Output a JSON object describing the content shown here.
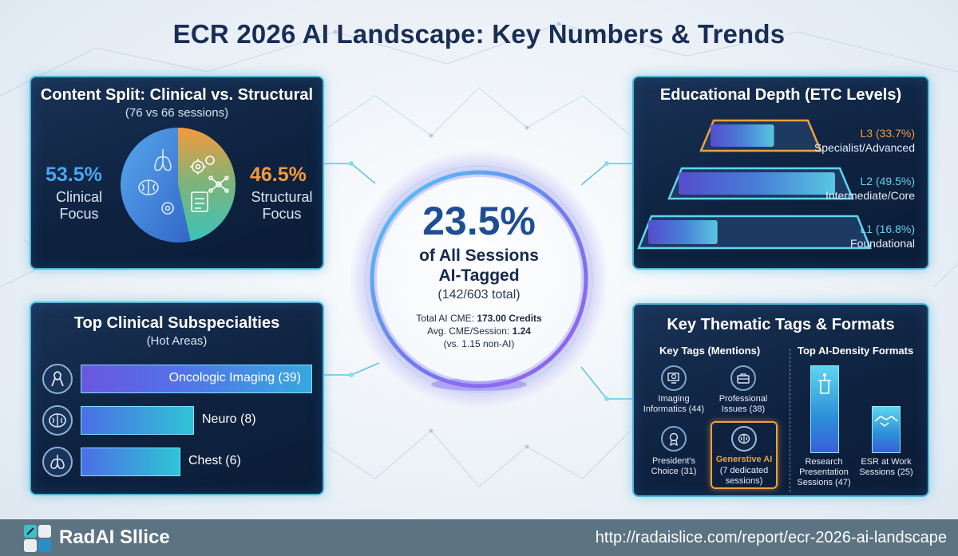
{
  "title": "ECR 2026 AI Landscape: Key Numbers & Trends",
  "content_split": {
    "heading": "Content Split: Clinical vs. Structural",
    "subheading": "(76 vs 66 sessions)",
    "clinical_pct": "53.5%",
    "clinical_label_1": "Clinical",
    "clinical_label_2": "Focus",
    "structural_pct": "46.5%",
    "structural_label_1": "Structural",
    "structural_label_2": "Focus",
    "clinical_fraction": 0.535,
    "colors": {
      "clinical": "#3b8fdc",
      "structural": "#f08a3a",
      "teal": "#3fc0b6"
    }
  },
  "center": {
    "big": "23.5%",
    "line1": "of All Sessions",
    "line2": "AI-Tagged",
    "line3": "(142/603 total)",
    "cme_label": "Total AI CME: ",
    "cme_value": "173.00 Credits",
    "avg_label": "Avg. CME/Session: ",
    "avg_value": "1.24",
    "comparison": "(vs. 1.15 non-AI)"
  },
  "edu": {
    "heading": "Educational Depth (ETC Levels)",
    "levels": [
      {
        "code": "L3 (33.7%)",
        "name": "Specialist/Advanced",
        "fill": 0.337,
        "color": "#f2a03a"
      },
      {
        "code": "L2 (49.5%)",
        "name": "Intermediate/Core",
        "fill": 0.495,
        "color": "#5fd6ef"
      },
      {
        "code": "L1 (16.8%)",
        "name": "Foundational",
        "fill": 0.168,
        "color": "#5fd6ef"
      }
    ]
  },
  "subspecialties": {
    "heading": "Top Clinical Subspecialties",
    "subheading": "(Hot Areas)",
    "items": [
      {
        "label": "Oncologic Imaging (39)",
        "value": 39,
        "icon": "ribbon-icon"
      },
      {
        "label": "Neuro (8)",
        "value": 8,
        "icon": "brain-icon"
      },
      {
        "label": "Chest (6)",
        "value": 6,
        "icon": "lungs-icon"
      }
    ]
  },
  "tags": {
    "heading": "Key Thematic Tags & Formats",
    "tags_col_heading": "Key Tags (Mentions)",
    "formats_col_heading": "Top AI-Density Formats",
    "tag_items": [
      {
        "label_1": "Imaging",
        "label_2": "Informatics (44)",
        "icon": "monitor-search-icon"
      },
      {
        "label_1": "Professional",
        "label_2": "Issues (38)",
        "icon": "briefcase-icon"
      },
      {
        "label_1": "President's",
        "label_2": "Choice (31)",
        "icon": "medal-icon"
      }
    ],
    "highlight": {
      "label_1": "Generstive AI",
      "label_2": "(7 dedicated",
      "label_3": "sessions)",
      "icon": "ai-brain-icon"
    },
    "formats": [
      {
        "label_1": "Research",
        "label_2": "Presentation",
        "label_3": "Sessions (47)",
        "value": 47,
        "icon": "podium-icon"
      },
      {
        "label_1": "ESR at Work",
        "label_2": "Sessions (25)",
        "value": 25,
        "icon": "handshake-icon"
      }
    ]
  },
  "footer": {
    "brand": "RadAI Sllice",
    "url": "http://radaislice.com/report/ecr-2026-ai-landscape"
  }
}
